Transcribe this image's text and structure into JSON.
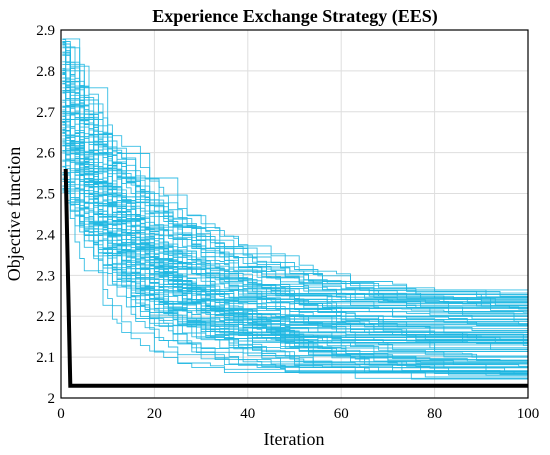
{
  "chart_data": {
    "type": "line",
    "title": "Experience Exchange Strategy (EES)",
    "xlabel": "Iteration",
    "ylabel": "Objective function",
    "xlim": [
      0,
      100
    ],
    "ylim": [
      2,
      2.9
    ],
    "xticks": [
      "0",
      "20",
      "40",
      "60",
      "80",
      "100"
    ],
    "yticks": [
      "2",
      "2.1",
      "2.2",
      "2.3",
      "2.4",
      "2.5",
      "2.6",
      "2.7",
      "2.8",
      "2.9"
    ],
    "grid": true,
    "series": [
      {
        "role": "runs",
        "count": 100,
        "color": "#1fb7e1",
        "start_range": [
          2.5,
          2.88
        ],
        "final_range": [
          2.04,
          2.27
        ],
        "note": "individual convergence curves"
      },
      {
        "role": "best",
        "color": "#000000",
        "x": [
          1,
          2,
          100
        ],
        "y": [
          2.56,
          2.03,
          2.03
        ]
      }
    ]
  }
}
